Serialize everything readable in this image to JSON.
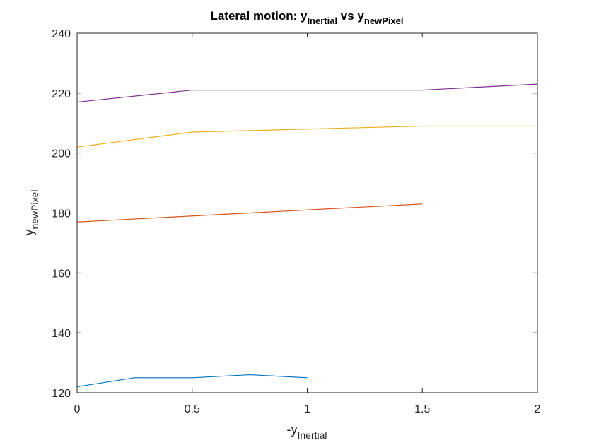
{
  "chart_data": {
    "type": "line",
    "title": {
      "prefix": "Lateral motion: y",
      "sub1": "Inertial",
      "middle": " vs y",
      "sub2": "newPixel"
    },
    "xlabel": {
      "base": "-y",
      "sub": "Inertial"
    },
    "ylabel": {
      "base": "y",
      "sub": "newPixel"
    },
    "xlim": [
      0,
      2
    ],
    "ylim": [
      120,
      240
    ],
    "xticks": [
      0,
      0.5,
      1,
      1.5,
      2
    ],
    "xtick_labels": [
      "0",
      "0.5",
      "1",
      "1.5",
      "2"
    ],
    "yticks": [
      120,
      140,
      160,
      180,
      200,
      220,
      240
    ],
    "ytick_labels": [
      "120",
      "140",
      "160",
      "180",
      "200",
      "220",
      "240"
    ],
    "grid": false,
    "series": [
      {
        "color": "#0072BD",
        "x": [
          0,
          0.25,
          0.5,
          0.75,
          1.0
        ],
        "y": [
          122,
          125,
          125,
          126,
          125
        ]
      },
      {
        "color": "#D95319",
        "x": [
          0,
          0.5,
          1.0,
          1.5
        ],
        "y": [
          177,
          179,
          181,
          183
        ]
      },
      {
        "color": "#EDB120",
        "x": [
          0,
          0.5,
          1.0,
          1.5,
          2.0
        ],
        "y": [
          202,
          207,
          208,
          209,
          209
        ]
      },
      {
        "color": "#7E2F8E",
        "x": [
          0,
          0.5,
          1.0,
          1.5,
          2.0
        ],
        "y": [
          217,
          221,
          221,
          221,
          223
        ]
      }
    ]
  }
}
